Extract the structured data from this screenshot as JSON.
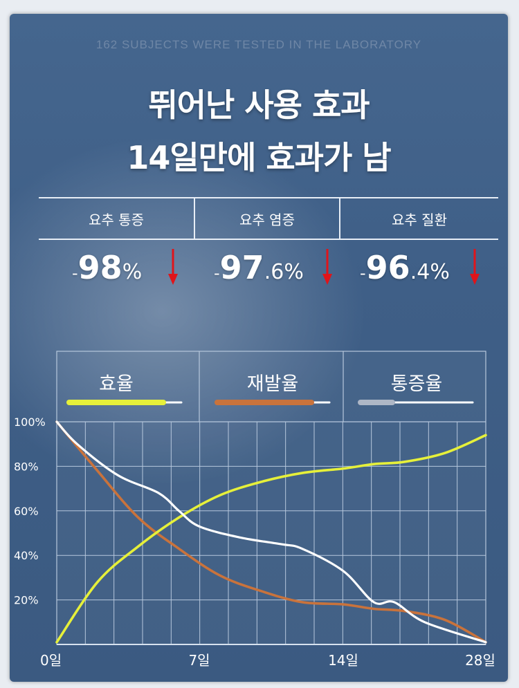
{
  "header": {
    "caption": "162 SUBJECTS WERE TESTED IN THE LABORATORY",
    "title_line1": "뛰어난 사용 효과",
    "title_line2": "14일만에 효과가 남"
  },
  "stats": [
    {
      "label": "요추 통증",
      "prefix": "-",
      "value": "98",
      "decimal": "",
      "unit": "%",
      "direction": "down"
    },
    {
      "label": "요추 염증",
      "prefix": "-",
      "value": "97",
      "decimal": ".6",
      "unit": "%",
      "direction": "down"
    },
    {
      "label": "요추 질환",
      "prefix": "-",
      "value": "96",
      "decimal": ".4",
      "unit": "%",
      "direction": "down"
    }
  ],
  "colors": {
    "efficacy": "#e6f03a",
    "recurrence": "#c9733c",
    "pain": "#ffffff",
    "arrow": "#e0141a"
  },
  "chart_data": {
    "type": "line",
    "legend_position": "top",
    "grid": true,
    "x_tick_labels": [
      "0일",
      "7일",
      "14일",
      "28일"
    ],
    "y_tick_labels": [
      "100%",
      "80%",
      "60%",
      "40%",
      "20%"
    ],
    "ylim": [
      0,
      100
    ],
    "x_unit": "day",
    "series": [
      {
        "name": "효율",
        "color": "#e6f03a",
        "x": [
          0,
          2,
          4,
          6,
          8,
          10,
          12,
          14,
          17,
          20,
          24,
          28
        ],
        "y": [
          1,
          28,
          44,
          57,
          67,
          73,
          77,
          79,
          81,
          82,
          86,
          94
        ]
      },
      {
        "name": "재발율",
        "color": "#c9733c",
        "x": [
          0,
          2,
          4,
          6,
          8,
          10,
          12,
          14,
          17,
          20,
          24,
          28
        ],
        "y": [
          100,
          78,
          57,
          43,
          31,
          24,
          19,
          18,
          16,
          15,
          11,
          1
        ]
      },
      {
        "name": "통증율",
        "color": "#ffffff",
        "x": [
          0,
          1,
          3,
          5,
          6,
          7,
          9,
          11,
          12,
          14,
          17,
          19,
          22,
          28
        ],
        "y": [
          100,
          90,
          76,
          68,
          60,
          53,
          48,
          45,
          43,
          33,
          19,
          19,
          10,
          1
        ]
      }
    ]
  }
}
